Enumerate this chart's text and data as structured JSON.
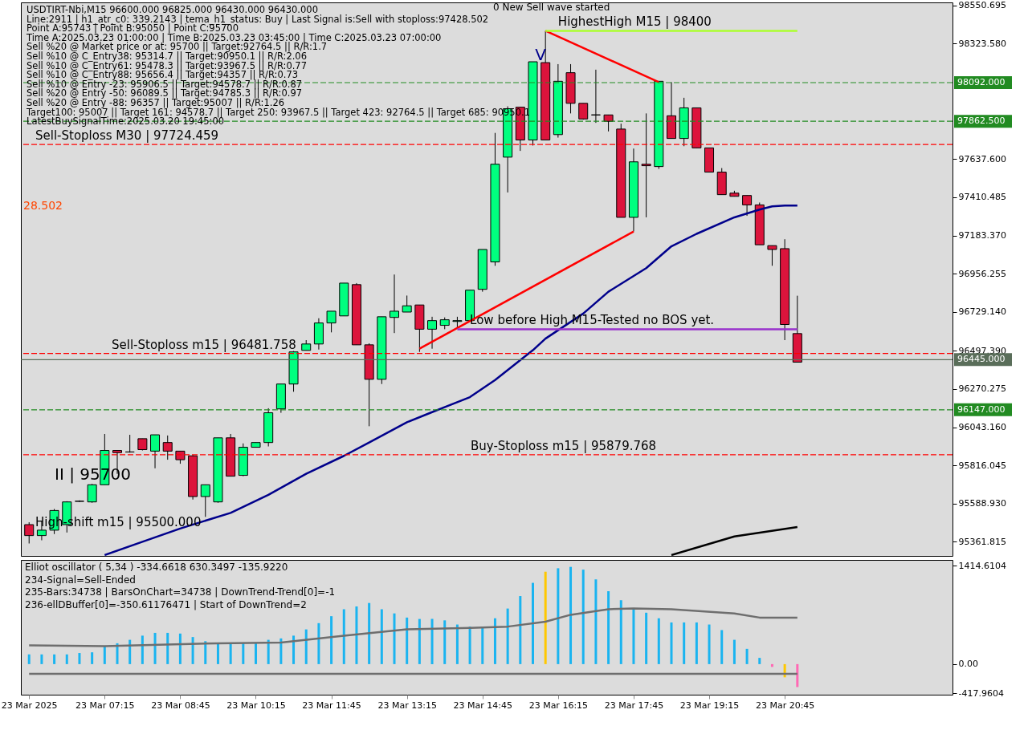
{
  "chart_data": [
    {
      "type": "candlestick",
      "x": [
        "2025-03-23T05:45",
        "2025-03-23T06:00",
        "2025-03-23T06:15",
        "2025-03-23T06:30",
        "2025-03-23T06:45",
        "2025-03-23T07:00",
        "2025-03-23T07:15",
        "2025-03-23T07:30",
        "2025-03-23T07:45",
        "2025-03-23T08:00",
        "2025-03-23T08:15",
        "2025-03-23T08:30",
        "2025-03-23T08:45",
        "2025-03-23T09:00",
        "2025-03-23T09:15",
        "2025-03-23T09:30",
        "2025-03-23T09:45",
        "2025-03-23T10:00",
        "2025-03-23T10:15",
        "2025-03-23T10:30",
        "2025-03-23T10:45",
        "2025-03-23T11:00",
        "2025-03-23T11:15",
        "2025-03-23T11:30",
        "2025-03-23T11:45",
        "2025-03-23T12:00",
        "2025-03-23T12:15",
        "2025-03-23T12:30",
        "2025-03-23T12:45",
        "2025-03-23T13:00",
        "2025-03-23T13:15",
        "2025-03-23T13:30",
        "2025-03-23T13:45",
        "2025-03-23T14:00",
        "2025-03-23T14:15",
        "2025-03-23T14:30",
        "2025-03-23T14:45",
        "2025-03-23T15:00",
        "2025-03-23T15:15",
        "2025-03-23T15:30",
        "2025-03-23T15:45",
        "2025-03-23T16:00",
        "2025-03-23T16:15",
        "2025-03-23T16:30",
        "2025-03-23T16:45",
        "2025-03-23T17:00",
        "2025-03-23T17:15",
        "2025-03-23T17:30",
        "2025-03-23T17:45",
        "2025-03-23T18:00",
        "2025-03-23T18:15",
        "2025-03-23T18:30",
        "2025-03-23T18:45",
        "2025-03-23T19:00",
        "2025-03-23T19:15",
        "2025-03-23T19:30",
        "2025-03-23T19:45",
        "2025-03-23T20:00",
        "2025-03-23T20:15",
        "2025-03-23T20:30",
        "2025-03-23T20:45",
        "2025-03-23T21:00"
      ],
      "ohlc": [
        [
          95464,
          95478,
          95352,
          95399
        ],
        [
          95399,
          95487,
          95371,
          95431
        ],
        [
          95431,
          95557,
          95408,
          95548
        ],
        [
          95464,
          95603,
          95417,
          95599
        ],
        [
          95603,
          95608,
          95599,
          95603
        ],
        [
          95599,
          95706,
          95594,
          95701
        ],
        [
          95701,
          96003,
          95701,
          95905
        ],
        [
          95905,
          95905,
          95766,
          95892
        ],
        [
          95896,
          95998,
          95892,
          95896
        ],
        [
          95975,
          95975,
          95905,
          95910
        ],
        [
          95901,
          95998,
          95799,
          95998
        ],
        [
          95952,
          95994,
          95850,
          95901
        ],
        [
          95901,
          95901,
          95826,
          95850
        ],
        [
          95873,
          95878,
          95613,
          95631
        ],
        [
          95631,
          95701,
          95510,
          95701
        ],
        [
          95599,
          95980,
          95594,
          95980
        ],
        [
          95980,
          96003,
          95752,
          95752
        ],
        [
          95757,
          95947,
          95752,
          95924
        ],
        [
          95924,
          95952,
          95924,
          95952
        ],
        [
          95952,
          96156,
          95929,
          96129
        ],
        [
          96152,
          96300,
          96129,
          96300
        ],
        [
          96300,
          96496,
          96254,
          96491
        ],
        [
          96500,
          96561,
          96500,
          96538
        ],
        [
          96538,
          96691,
          96505,
          96663
        ],
        [
          96663,
          96733,
          96607,
          96733
        ],
        [
          96705,
          96900,
          96705,
          96900
        ],
        [
          96891,
          96900,
          96533,
          96533
        ],
        [
          96533,
          96542,
          96049,
          96328
        ],
        [
          96328,
          96700,
          96300,
          96700
        ],
        [
          96696,
          96951,
          96603,
          96733
        ],
        [
          96728,
          96826,
          96728,
          96765
        ],
        [
          96770,
          96770,
          96491,
          96626
        ],
        [
          96626,
          96700,
          96510,
          96677
        ],
        [
          96649,
          96696,
          96626,
          96682
        ],
        [
          96672,
          96700,
          96631,
          96677
        ],
        [
          96677,
          96858,
          96672,
          96858
        ],
        [
          96863,
          97100,
          96849,
          97100
        ],
        [
          97026,
          97793,
          97003,
          97607
        ],
        [
          97649,
          97951,
          97439,
          97937
        ],
        [
          97946,
          97946,
          97686,
          97751
        ],
        [
          97751,
          98216,
          97718,
          98216
        ],
        [
          98211,
          98400,
          97751,
          97751
        ],
        [
          97783,
          98202,
          97765,
          98100
        ],
        [
          98151,
          98202,
          97909,
          97969
        ],
        [
          97969,
          97969,
          97872,
          97876
        ],
        [
          97900,
          98169,
          97853,
          97900
        ],
        [
          97900,
          97900,
          97802,
          97862
        ],
        [
          97816,
          97848,
          97291,
          97291
        ],
        [
          97291,
          97700,
          97207,
          97621
        ],
        [
          97607,
          97909,
          97291,
          97598
        ],
        [
          97593,
          98100,
          97579,
          98100
        ],
        [
          97895,
          98095,
          97760,
          97760
        ],
        [
          97760,
          98002,
          97714,
          97942
        ],
        [
          97942,
          97942,
          97704,
          97704
        ],
        [
          97704,
          97704,
          97560,
          97560
        ],
        [
          97560,
          97584,
          97426,
          97426
        ],
        [
          97435,
          97449,
          97416,
          97416
        ],
        [
          97421,
          97421,
          97300,
          97365
        ],
        [
          97365,
          97379,
          97128,
          97128
        ],
        [
          97123,
          97123,
          97003,
          97100
        ],
        [
          97105,
          97161,
          96561,
          96654
        ],
        [
          96600,
          96825,
          96430,
          96430
        ]
      ],
      "colors": [
        "#dc143c",
        "#00ff7f",
        "#00ff7f",
        "#00ff7f",
        "#000000",
        "#00ff7f",
        "#00ff7f",
        "#dc143c",
        "#000000",
        "#dc143c",
        "#00ff7f",
        "#dc143c",
        "#dc143c",
        "#dc143c",
        "#00ff7f",
        "#00ff7f",
        "#dc143c",
        "#00ff7f",
        "#00ff7f",
        "#00ff7f",
        "#00ff7f",
        "#00ff7f",
        "#00ff7f",
        "#00ff7f",
        "#00ff7f",
        "#00ff7f",
        "#dc143c",
        "#dc143c",
        "#00ff7f",
        "#00ff7f",
        "#00ff7f",
        "#dc143c",
        "#00ff7f",
        "#00ff7f",
        "#00ff7f",
        "#00ff7f",
        "#00ff7f",
        "#00ff7f",
        "#00ff7f",
        "#dc143c",
        "#00ff7f",
        "#dc143c",
        "#00ff7f",
        "#dc143c",
        "#dc143c",
        "#000000",
        "#dc143c",
        "#dc143c",
        "#00ff7f",
        "#dc143c",
        "#00ff7f",
        "#dc143c",
        "#00ff7f",
        "#dc143c",
        "#dc143c",
        "#dc143c",
        "#dc143c",
        "#dc143c",
        "#dc143c",
        "#dc143c",
        "#dc143c",
        "#dc143c"
      ],
      "series": [
        {
          "type": "line",
          "color": "#00008b",
          "x": [
            "2025-03-23T07:15",
            "2025-03-23T08:00",
            "2025-03-23T08:45",
            "2025-03-23T09:45",
            "2025-03-23T10:30",
            "2025-03-23T11:15",
            "2025-03-23T12:00",
            "2025-03-23T12:30",
            "2025-03-23T13:15",
            "2025-03-23T13:45",
            "2025-03-23T14:30",
            "2025-03-23T15:00",
            "2025-03-23T15:45",
            "2025-03-23T16:00",
            "2025-03-23T16:45",
            "2025-03-23T17:15",
            "2025-03-23T18:00",
            "2025-03-23T18:30",
            "2025-03-23T19:00",
            "2025-03-23T19:45",
            "2025-03-23T20:15",
            "2025-03-23T20:30",
            "2025-03-23T20:45",
            "2025-03-23T21:00"
          ],
          "values": [
            95283,
            95362,
            95441,
            95534,
            95641,
            95766,
            95873,
            95952,
            96073,
            96133,
            96222,
            96324,
            96501,
            96570,
            96719,
            96849,
            96989,
            97119,
            97193,
            97291,
            97337,
            97356,
            97361,
            97361
          ]
        },
        {
          "type": "line",
          "color": "#000000",
          "x": [
            "2025-03-23T18:30",
            "2025-03-23T19:45",
            "2025-03-23T21:00"
          ],
          "values": [
            95283,
            95394,
            95450
          ]
        },
        {
          "type": "line",
          "color": "#ff0000",
          "x": [
            "2025-03-23T13:30",
            "2025-03-23T17:45"
          ],
          "values": [
            96510,
            97207
          ]
        },
        {
          "type": "line",
          "color": "#ff0000",
          "x": [
            "2025-03-23T16:00",
            "2025-03-23T18:15"
          ],
          "values": [
            98400,
            98095
          ]
        },
        {
          "type": "line",
          "color": "#adff2f",
          "x": [
            "2025-03-23T16:00",
            "2025-03-23T21:00"
          ],
          "values": [
            98400,
            98400
          ]
        },
        {
          "type": "line",
          "color": "#9932cc",
          "x": [
            "2025-03-23T14:15",
            "2025-03-23T21:00"
          ],
          "values": [
            96626,
            96626
          ]
        }
      ],
      "xlim": [
        "2025-03-23T05:40",
        "2025-03-24T00:00"
      ],
      "ylim": [
        95278,
        98569
      ],
      "yticks": [
        {
          "value": 98550.695,
          "label": "98550.695"
        },
        {
          "value": 98323.58,
          "label": "98323.580"
        },
        {
          "value": 97637.6,
          "label": "97637.600"
        },
        {
          "value": 97410.485,
          "label": "97410.485"
        },
        {
          "value": 97183.37,
          "label": "97183.370"
        },
        {
          "value": 96956.255,
          "label": "96956.255"
        },
        {
          "value": 96729.14,
          "label": "96729.140"
        },
        {
          "value": 96497.39,
          "label": "96497.390"
        },
        {
          "value": 96270.275,
          "label": "96270.275"
        },
        {
          "value": 96043.16,
          "label": "96043.160"
        },
        {
          "value": 95816.045,
          "label": "95816.045"
        },
        {
          "value": 95588.93,
          "label": "95588.930"
        },
        {
          "value": 95361.815,
          "label": "95361.815"
        }
      ],
      "tick_labels": "y",
      "ref_lines": [
        {
          "axis": "y",
          "value": 98092,
          "label": "98092.000",
          "color": "#228b22",
          "line_style": "dashed"
        },
        {
          "axis": "y",
          "value": 97862.5,
          "label": "97862.500",
          "color": "#228b22",
          "line_style": "dashed"
        },
        {
          "axis": "y",
          "value": 97724.459,
          "label": "Sell-Stoploss M30 | 97724.459",
          "color": "#ff0000",
          "line_style": "dashed"
        },
        {
          "axis": "y",
          "value": 96481.758,
          "label": "Sell-Stoploss m15 | 96481.758",
          "color": "#ff0000",
          "line_style": "dashed"
        },
        {
          "axis": "y",
          "value": 96445,
          "label": "96445.000",
          "color": "#5a6e5a",
          "line_style": "solid"
        },
        {
          "axis": "y",
          "value": 96147,
          "label": "96147.000",
          "color": "#228b22",
          "line_style": "dashed"
        },
        {
          "axis": "y",
          "value": 95879.768,
          "label": "Buy-Stoploss m15 | 95879.768",
          "color": "#ff0000",
          "line_style": "dashed"
        }
      ],
      "annotations": [
        "USDTIRT-Nbi,M15  96600.000 96825.000 96430.000 96430.000",
        "Line:2911 | h1_atr_c0: 339.2143 | tema_h1_status: Buy | Last Signal is:Sell with stoploss:97428.502",
        "Point A:95743 | Point B:95050 | Point C:95700",
        "Time A:2025.03.23 01:00:00 | Time B:2025.03.23 03:45:00 | Time C:2025.03.23 07:00:00",
        "Sell %20 @ Market price or at: 95700 || Target:92764.5 || R/R:1.7",
        "Sell %10 @ C_Entry38: 95314.7 || Target:90950.1 || R/R:2.06",
        "Sell %10 @ C_Entry61: 95478.3 || Target:93967.5 || R/R:0.77",
        "Sell %10 @ C_Entry88: 95656.4 || Target:94357 || R/R:0.73",
        "Sell %10 @ Entry -23: 95906.5 || Target:94578.7 || R/R:0.87",
        "Sell %20 @ Entry -50: 96089.5 || Target:94785.3 || R/R:0.97",
        "Sell %20 @ Entry -88: 96357 || Target:95007 || R/R:1.26",
        "Target100: 95007 || Target 161: 94578.7 || Target 250: 93967.5 || Target 423: 92764.5 || Target 685: 90950.1",
        "LatestBuySignalTime:2025.03.20 19:45:00",
        "0 New Sell wave started",
        "V",
        "II | 95700",
        "High-shift m15 | 95500.000",
        "28.502",
        {
          "text": "HighestHigh   M15 | 98400",
          "x": "2025-03-23T16:15",
          "y": 98400
        },
        {
          "text": "Low before High  M15-Tested no BOS yet.",
          "x": "2025-03-23T14:30",
          "y": 96626
        }
      ]
    },
    {
      "type": "bar",
      "x": [
        "2025-03-23T05:45",
        "2025-03-23T06:00",
        "2025-03-23T06:15",
        "2025-03-23T06:30",
        "2025-03-23T06:45",
        "2025-03-23T07:00",
        "2025-03-23T07:15",
        "2025-03-23T07:30",
        "2025-03-23T07:45",
        "2025-03-23T08:00",
        "2025-03-23T08:15",
        "2025-03-23T08:30",
        "2025-03-23T08:45",
        "2025-03-23T09:00",
        "2025-03-23T09:15",
        "2025-03-23T09:30",
        "2025-03-23T09:45",
        "2025-03-23T10:00",
        "2025-03-23T10:15",
        "2025-03-23T10:30",
        "2025-03-23T10:45",
        "2025-03-23T11:00",
        "2025-03-23T11:15",
        "2025-03-23T11:30",
        "2025-03-23T11:45",
        "2025-03-23T12:00",
        "2025-03-23T12:15",
        "2025-03-23T12:30",
        "2025-03-23T12:45",
        "2025-03-23T13:00",
        "2025-03-23T13:15",
        "2025-03-23T13:30",
        "2025-03-23T13:45",
        "2025-03-23T14:00",
        "2025-03-23T14:15",
        "2025-03-23T14:30",
        "2025-03-23T14:45",
        "2025-03-23T15:00",
        "2025-03-23T15:15",
        "2025-03-23T15:30",
        "2025-03-23T15:45",
        "2025-03-23T16:00",
        "2025-03-23T16:15",
        "2025-03-23T16:30",
        "2025-03-23T16:45",
        "2025-03-23T17:00",
        "2025-03-23T17:15",
        "2025-03-23T17:30",
        "2025-03-23T17:45",
        "2025-03-23T18:00",
        "2025-03-23T18:15",
        "2025-03-23T18:30",
        "2025-03-23T18:45",
        "2025-03-23T19:00",
        "2025-03-23T19:15",
        "2025-03-23T19:30",
        "2025-03-23T19:45",
        "2025-03-23T20:00",
        "2025-03-23T20:15",
        "2025-03-23T20:30",
        "2025-03-23T20:45",
        "2025-03-23T21:00"
      ],
      "values": [
        140,
        140,
        140,
        140,
        160,
        170,
        260,
        300,
        350,
        410,
        450,
        450,
        440,
        390,
        330,
        300,
        300,
        310,
        310,
        350,
        370,
        410,
        500,
        590,
        690,
        790,
        830,
        880,
        790,
        730,
        670,
        650,
        650,
        630,
        570,
        540,
        540,
        660,
        800,
        980,
        1170,
        1330,
        1380,
        1400,
        1360,
        1220,
        1050,
        920,
        800,
        740,
        660,
        600,
        600,
        600,
        570,
        490,
        350,
        220,
        90,
        -40,
        -190,
        -330
      ],
      "colors": [
        "#1ab4f0",
        "#1ab4f0",
        "#1ab4f0",
        "#1ab4f0",
        "#1ab4f0",
        "#1ab4f0",
        "#1ab4f0",
        "#1ab4f0",
        "#1ab4f0",
        "#1ab4f0",
        "#1ab4f0",
        "#1ab4f0",
        "#1ab4f0",
        "#1ab4f0",
        "#1ab4f0",
        "#1ab4f0",
        "#1ab4f0",
        "#1ab4f0",
        "#1ab4f0",
        "#1ab4f0",
        "#1ab4f0",
        "#1ab4f0",
        "#1ab4f0",
        "#1ab4f0",
        "#1ab4f0",
        "#1ab4f0",
        "#1ab4f0",
        "#1ab4f0",
        "#1ab4f0",
        "#1ab4f0",
        "#1ab4f0",
        "#1ab4f0",
        "#1ab4f0",
        "#1ab4f0",
        "#1ab4f0",
        "#1ab4f0",
        "#1ab4f0",
        "#1ab4f0",
        "#1ab4f0",
        "#1ab4f0",
        "#1ab4f0",
        "#ffc800",
        "#1ab4f0",
        "#1ab4f0",
        "#1ab4f0",
        "#1ab4f0",
        "#1ab4f0",
        "#1ab4f0",
        "#1ab4f0",
        "#1ab4f0",
        "#1ab4f0",
        "#1ab4f0",
        "#1ab4f0",
        "#1ab4f0",
        "#1ab4f0",
        "#1ab4f0",
        "#1ab4f0",
        "#1ab4f0",
        "#1ab4f0",
        "#ff69b4",
        "#ffc800",
        "#ff69b4"
      ],
      "series": [
        {
          "type": "line",
          "color": "#6e6e6e",
          "x": [
            "2025-03-23T05:45",
            "2025-03-23T07:15",
            "2025-03-23T09:30",
            "2025-03-23T10:45",
            "2025-03-23T12:00",
            "2025-03-23T13:15",
            "2025-03-23T14:30",
            "2025-03-23T15:15",
            "2025-03-23T16:00",
            "2025-03-23T16:30",
            "2025-03-23T17:15",
            "2025-03-23T17:45",
            "2025-03-23T18:30",
            "2025-03-23T19:45",
            "2025-03-23T20:15",
            "2025-03-23T20:45",
            "2025-03-23T21:00"
          ],
          "values": [
            270,
            260,
            300,
            310,
            410,
            500,
            520,
            540,
            610,
            710,
            790,
            800,
            790,
            730,
            670,
            670,
            670
          ]
        },
        {
          "type": "line",
          "color": "#6e6e6e",
          "x": [
            "2025-03-23T05:45",
            "2025-03-23T21:00"
          ],
          "values": [
            -140,
            -140
          ]
        }
      ],
      "xlim": [
        "2025-03-23T05:40",
        "2025-03-24T00:00"
      ],
      "xticks": [
        {
          "value": "2025-03-23T05:45",
          "label": "23 Mar 2025"
        },
        {
          "value": "2025-03-23T07:15",
          "label": "23 Mar 07:15"
        },
        {
          "value": "2025-03-23T08:45",
          "label": "23 Mar 08:45"
        },
        {
          "value": "2025-03-23T10:15",
          "label": "23 Mar 10:15"
        },
        {
          "value": "2025-03-23T11:45",
          "label": "23 Mar 11:45"
        },
        {
          "value": "2025-03-23T13:15",
          "label": "23 Mar 13:15"
        },
        {
          "value": "2025-03-23T14:45",
          "label": "23 Mar 14:45"
        },
        {
          "value": "2025-03-23T16:15",
          "label": "23 Mar 16:15"
        },
        {
          "value": "2025-03-23T17:45",
          "label": "23 Mar 17:45"
        },
        {
          "value": "2025-03-23T19:15",
          "label": "23 Mar 19:15"
        },
        {
          "value": "2025-03-23T20:45",
          "label": "23 Mar 20:45"
        }
      ],
      "ylim": [
        -440,
        1500
      ],
      "yticks": [
        {
          "value": 1414.6104,
          "label": "1414.6104"
        },
        {
          "value": 0,
          "label": "0.00"
        },
        {
          "value": -417.9604,
          "label": "-417.9604"
        }
      ],
      "annotations": [
        "Elliot oscillator ( 5,34 ) -334.6618 630.3497 -135.9220",
        "234-Signal=Sell-Ended",
        "235-Bars:34738 | BarsOnChart=34738 | DownTrend-Trend[0]=-1",
        "236-ellDBuffer[0]=-350.61176471 | Start of DownTrend=2"
      ]
    }
  ]
}
